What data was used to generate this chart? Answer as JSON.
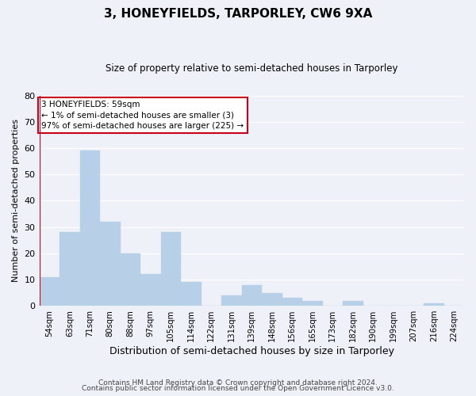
{
  "title": "3, HONEYFIELDS, TARPORLEY, CW6 9XA",
  "subtitle": "Size of property relative to semi-detached houses in Tarporley",
  "xlabel": "Distribution of semi-detached houses by size in Tarporley",
  "ylabel": "Number of semi-detached properties",
  "bar_color": "#b8cfe8",
  "highlight_color": "#c8001a",
  "background_color": "#eef2f8",
  "grid_color": "#ffffff",
  "bins": [
    "54sqm",
    "63sqm",
    "71sqm",
    "80sqm",
    "88sqm",
    "97sqm",
    "105sqm",
    "114sqm",
    "122sqm",
    "131sqm",
    "139sqm",
    "148sqm",
    "156sqm",
    "165sqm",
    "173sqm",
    "182sqm",
    "190sqm",
    "199sqm",
    "207sqm",
    "216sqm",
    "224sqm"
  ],
  "values": [
    11,
    28,
    59,
    32,
    20,
    12,
    28,
    9,
    0,
    4,
    8,
    5,
    3,
    2,
    0,
    2,
    0,
    0,
    0,
    1,
    0
  ],
  "highlight_bin_index": 0,
  "annotation_text": "3 HONEYFIELDS: 59sqm\n← 1% of semi-detached houses are smaller (3)\n97% of semi-detached houses are larger (225) →",
  "ylim": [
    0,
    80
  ],
  "yticks": [
    0,
    10,
    20,
    30,
    40,
    50,
    60,
    70,
    80
  ],
  "footer_line1": "Contains HM Land Registry data © Crown copyright and database right 2024.",
  "footer_line2": "Contains public sector information licensed under the Open Government Licence v3.0.",
  "figsize": [
    6.0,
    5.0
  ],
  "dpi": 100
}
